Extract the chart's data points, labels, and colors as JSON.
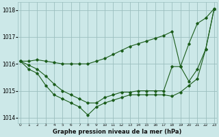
{
  "title": "Graphe pression niveau de la mer (hPa)",
  "bg_color": "#cce8e8",
  "grid_color": "#9bbfbf",
  "line_color": "#1a5c1a",
  "x_hours": [
    0,
    1,
    2,
    3,
    4,
    5,
    6,
    7,
    8,
    9,
    10,
    11,
    12,
    13,
    14,
    15,
    16,
    17,
    18,
    19,
    20,
    21,
    22,
    23
  ],
  "series_top": [
    1016.1,
    1016.1,
    1016.15,
    1016.1,
    1016.05,
    1016.0,
    1016.0,
    1016.0,
    1016.0,
    1016.1,
    1016.2,
    1016.35,
    1016.5,
    1016.65,
    1016.75,
    1016.85,
    1016.95,
    1017.05,
    1017.2,
    1015.9,
    1016.75,
    1017.5,
    1017.7,
    1018.05
  ],
  "series_mid": [
    1016.1,
    1015.95,
    1015.8,
    1015.55,
    1015.25,
    1015.0,
    1014.85,
    1014.7,
    1014.55,
    1014.55,
    1014.75,
    1014.85,
    1014.95,
    1014.95,
    1015.0,
    1015.0,
    1015.0,
    1015.0,
    1015.9,
    1015.9,
    1015.35,
    1015.8,
    1016.55,
    1018.05
  ],
  "series_bot": [
    1016.1,
    1015.8,
    1015.65,
    1015.2,
    1014.85,
    1014.7,
    1014.55,
    1014.4,
    1014.1,
    1014.4,
    1014.55,
    1014.65,
    1014.75,
    1014.85,
    1014.85,
    1014.85,
    1014.85,
    1014.85,
    1014.8,
    1014.95,
    1015.2,
    1015.45,
    1016.55,
    1018.05
  ],
  "ylim": [
    1013.8,
    1018.3
  ],
  "yticks": [
    1014,
    1015,
    1016,
    1017,
    1018
  ],
  "xlim": [
    -0.3,
    23.3
  ]
}
